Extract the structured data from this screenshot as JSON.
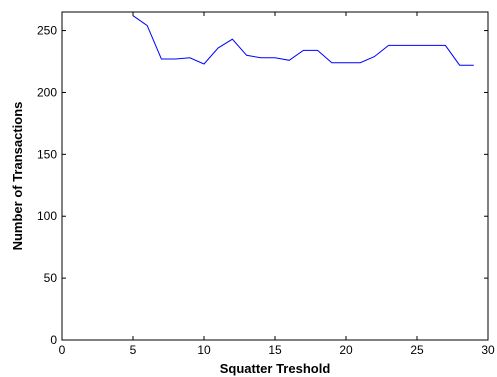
{
  "chart_data": {
    "type": "line",
    "title": "",
    "xlabel": "Squatter Treshold",
    "ylabel": "Number of Transactions",
    "xlim": [
      0,
      30
    ],
    "ylim": [
      0,
      265
    ],
    "xticks": [
      0,
      5,
      10,
      15,
      20,
      25,
      30
    ],
    "yticks": [
      0,
      50,
      100,
      150,
      200,
      250
    ],
    "grid": false,
    "legend": "none",
    "series": [
      {
        "color": "#0000ff",
        "x": [
          5,
          6,
          7,
          8,
          9,
          10,
          11,
          12,
          13,
          14,
          15,
          16,
          17,
          18,
          19,
          20,
          21,
          22,
          23,
          24,
          25,
          26,
          27,
          28,
          29
        ],
        "y": [
          262,
          254,
          227,
          227,
          228,
          223,
          236,
          243,
          230,
          228,
          228,
          226,
          234,
          234,
          224,
          224,
          224,
          229,
          238,
          238,
          238,
          238,
          238,
          222,
          222
        ]
      }
    ]
  }
}
